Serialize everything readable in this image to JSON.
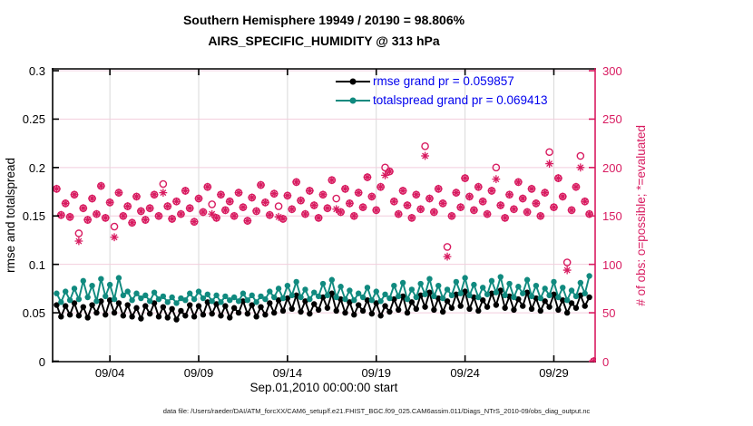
{
  "title": {
    "line1": "Southern Hemisphere 19949 / 20190 = 98.806%",
    "line2": "AIRS_SPECIFIC_HUMIDITY @ 313 hPa"
  },
  "legend": [
    {
      "label": "rmse grand pr = 0.059857",
      "series": "rmse"
    },
    {
      "label": "totalspread grand pr = 0.069413",
      "series": "totalspread"
    }
  ],
  "axes": {
    "left_label": "rmse and totalspread",
    "right_label": "# of obs: o=possible; *=evaluated",
    "xlabel": "Sep.01,2010 00:00:00 start"
  },
  "footer": "data file: /Users/raeder/DAI/ATM_forcXX/CAM6_setup/f.e21.FHIST_BGC.f09_025.CAM6assim.011/Diags_NTrS_2010-09/obs_diag_output.nc",
  "colors": {
    "rmse": "#000000",
    "totalspread": "#108a7f",
    "obs": "#d81b60",
    "legend_text": "#0000ee",
    "grid_x": "#d9d9d9",
    "grid_y": "#f2cedd",
    "axis": "#000000",
    "footer_text": "#1a1a1a"
  },
  "chart_data": {
    "type": "line",
    "title": "Southern Hemisphere 19949 / 20190 = 98.806% | AIRS_SPECIFIC_HUMIDITY @ 313 hPa",
    "x_unit": "6-hour assimilation bins starting Sep.01,2010 00:00:00",
    "xlim": [
      -0.8,
      121.2
    ],
    "ylim_left": [
      0,
      0.3
    ],
    "ylim_right": [
      0,
      300
    ],
    "grid": true,
    "legend_position": "top-right-inside",
    "x_ticks": [
      {
        "index": 12,
        "label": "09/04"
      },
      {
        "index": 32,
        "label": "09/09"
      },
      {
        "index": 52,
        "label": "09/14"
      },
      {
        "index": 72,
        "label": "09/19"
      },
      {
        "index": 92,
        "label": "09/24"
      },
      {
        "index": 112,
        "label": "09/29"
      }
    ],
    "y_left_ticks": [
      {
        "value": 0,
        "label": "0"
      },
      {
        "value": 0.05,
        "label": "0.05"
      },
      {
        "value": 0.1,
        "label": "0.1"
      },
      {
        "value": 0.15,
        "label": "0.15"
      },
      {
        "value": 0.2,
        "label": "0.2"
      },
      {
        "value": 0.25,
        "label": "0.25"
      },
      {
        "value": 0.3,
        "label": "0.3"
      }
    ],
    "y_right_ticks": [
      {
        "value": 0,
        "label": "0"
      },
      {
        "value": 50,
        "label": "50"
      },
      {
        "value": 100,
        "label": "100"
      },
      {
        "value": 150,
        "label": "150"
      },
      {
        "value": 200,
        "label": "200"
      },
      {
        "value": 250,
        "label": "250"
      },
      {
        "value": 300,
        "label": "300"
      }
    ],
    "series": [
      {
        "name": "rmse",
        "axis": "left",
        "marker": "filled-circle",
        "grand_mean": 0.059857,
        "values": [
          0.058,
          0.046,
          0.057,
          0.048,
          0.06,
          0.047,
          0.056,
          0.045,
          0.058,
          0.05,
          0.062,
          0.048,
          0.063,
          0.05,
          0.06,
          0.047,
          0.058,
          0.046,
          0.055,
          0.044,
          0.057,
          0.049,
          0.06,
          0.046,
          0.056,
          0.045,
          0.054,
          0.043,
          0.052,
          0.047,
          0.058,
          0.046,
          0.057,
          0.048,
          0.061,
          0.049,
          0.059,
          0.047,
          0.057,
          0.045,
          0.055,
          0.05,
          0.062,
          0.049,
          0.058,
          0.046,
          0.056,
          0.048,
          0.06,
          0.05,
          0.063,
          0.052,
          0.065,
          0.054,
          0.068,
          0.051,
          0.062,
          0.049,
          0.059,
          0.053,
          0.066,
          0.055,
          0.07,
          0.052,
          0.064,
          0.05,
          0.061,
          0.048,
          0.058,
          0.052,
          0.063,
          0.049,
          0.06,
          0.047,
          0.057,
          0.051,
          0.064,
          0.053,
          0.067,
          0.05,
          0.061,
          0.054,
          0.068,
          0.056,
          0.071,
          0.053,
          0.065,
          0.051,
          0.062,
          0.055,
          0.069,
          0.057,
          0.072,
          0.054,
          0.066,
          0.052,
          0.063,
          0.056,
          0.07,
          0.058,
          0.073,
          0.055,
          0.067,
          0.053,
          0.064,
          0.057,
          0.071,
          0.054,
          0.065,
          0.052,
          0.062,
          0.056,
          0.069,
          0.053,
          0.063,
          0.05,
          0.06,
          0.055,
          0.068,
          0.057,
          0.066
        ]
      },
      {
        "name": "totalspread",
        "axis": "left",
        "marker": "filled-circle",
        "grand_mean": 0.069413,
        "values": [
          0.07,
          0.061,
          0.072,
          0.063,
          0.075,
          0.064,
          0.083,
          0.066,
          0.078,
          0.062,
          0.085,
          0.067,
          0.079,
          0.064,
          0.086,
          0.068,
          0.072,
          0.063,
          0.07,
          0.065,
          0.068,
          0.062,
          0.071,
          0.064,
          0.067,
          0.061,
          0.066,
          0.06,
          0.065,
          0.063,
          0.07,
          0.064,
          0.072,
          0.065,
          0.069,
          0.062,
          0.068,
          0.061,
          0.067,
          0.063,
          0.066,
          0.062,
          0.07,
          0.063,
          0.068,
          0.061,
          0.067,
          0.064,
          0.072,
          0.066,
          0.075,
          0.065,
          0.078,
          0.068,
          0.082,
          0.066,
          0.074,
          0.064,
          0.071,
          0.067,
          0.08,
          0.068,
          0.084,
          0.066,
          0.077,
          0.064,
          0.073,
          0.063,
          0.07,
          0.066,
          0.076,
          0.063,
          0.072,
          0.062,
          0.069,
          0.065,
          0.078,
          0.067,
          0.081,
          0.064,
          0.074,
          0.066,
          0.08,
          0.069,
          0.085,
          0.067,
          0.078,
          0.065,
          0.074,
          0.068,
          0.082,
          0.07,
          0.086,
          0.068,
          0.079,
          0.066,
          0.076,
          0.069,
          0.083,
          0.071,
          0.087,
          0.068,
          0.08,
          0.066,
          0.077,
          0.07,
          0.084,
          0.067,
          0.078,
          0.065,
          0.075,
          0.068,
          0.082,
          0.066,
          0.076,
          0.063,
          0.073,
          0.067,
          0.081,
          0.07,
          0.088
        ]
      },
      {
        "name": "possible_obs",
        "axis": "right",
        "marker": "open-circle",
        "total": 20190,
        "values": [
          178,
          151,
          163,
          149,
          172,
          132,
          158,
          146,
          168,
          152,
          181,
          148,
          164,
          139,
          174,
          150,
          160,
          143,
          170,
          155,
          146,
          158,
          172,
          150,
          183,
          160,
          147,
          165,
          152,
          176,
          158,
          144,
          168,
          154,
          180,
          162,
          148,
          172,
          156,
          165,
          150,
          174,
          159,
          145,
          169,
          155,
          182,
          164,
          151,
          173,
          160,
          147,
          171,
          157,
          185,
          166,
          152,
          176,
          161,
          148,
          172,
          158,
          187,
          168,
          154,
          178,
          163,
          150,
          174,
          159,
          190,
          170,
          156,
          180,
          200,
          196,
          165,
          152,
          176,
          161,
          148,
          172,
          157,
          222,
          168,
          154,
          178,
          163,
          118,
          150,
          174,
          159,
          189,
          170,
          156,
          180,
          165,
          152,
          176,
          200,
          161,
          148,
          172,
          157,
          185,
          168,
          154,
          178,
          163,
          150,
          174,
          216,
          159,
          189,
          170,
          102,
          156,
          180,
          212,
          165,
          152,
          0
        ]
      },
      {
        "name": "evaluated_obs",
        "axis": "right",
        "marker": "asterisk",
        "total": 19949,
        "values": [
          178,
          151,
          163,
          149,
          172,
          124,
          158,
          146,
          168,
          152,
          181,
          148,
          164,
          128,
          174,
          150,
          160,
          143,
          170,
          155,
          146,
          158,
          172,
          150,
          174,
          160,
          147,
          165,
          152,
          176,
          158,
          144,
          168,
          154,
          180,
          152,
          148,
          172,
          156,
          165,
          150,
          174,
          159,
          145,
          169,
          155,
          182,
          164,
          151,
          173,
          149,
          147,
          171,
          157,
          185,
          166,
          152,
          176,
          161,
          148,
          172,
          158,
          187,
          157,
          154,
          178,
          163,
          150,
          174,
          159,
          190,
          170,
          156,
          180,
          192,
          196,
          165,
          152,
          176,
          161,
          148,
          172,
          157,
          212,
          168,
          154,
          178,
          163,
          108,
          150,
          174,
          159,
          189,
          170,
          156,
          180,
          165,
          152,
          176,
          188,
          161,
          148,
          172,
          157,
          185,
          168,
          154,
          178,
          163,
          150,
          174,
          204,
          159,
          189,
          170,
          94,
          156,
          180,
          200,
          165,
          152,
          0
        ]
      }
    ]
  }
}
